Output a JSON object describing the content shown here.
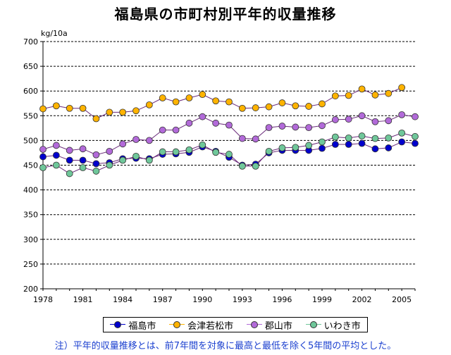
{
  "chart_data": {
    "type": "line",
    "title": "福島県の市町村別平年的収量推移",
    "ylabel": "kg/10a",
    "ylim": [
      200,
      700
    ],
    "yticks": [
      200,
      250,
      300,
      350,
      400,
      450,
      500,
      550,
      600,
      650,
      700
    ],
    "xlim": [
      1978,
      2006
    ],
    "xticks": [
      1978,
      1981,
      1984,
      1987,
      1990,
      1993,
      1996,
      1999,
      2002,
      2005
    ],
    "x": [
      1978,
      1979,
      1980,
      1981,
      1982,
      1983,
      1984,
      1985,
      1986,
      1987,
      1988,
      1989,
      1990,
      1991,
      1992,
      1993,
      1994,
      1995,
      1996,
      1997,
      1998,
      1999,
      2000,
      2001,
      2002,
      2003,
      2004,
      2005,
      2006
    ],
    "series": [
      {
        "name": "福島市",
        "color": "#0000cc",
        "values": [
          467,
          470,
          460,
          460,
          453,
          455,
          463,
          464,
          463,
          472,
          473,
          476,
          487,
          478,
          466,
          450,
          452,
          475,
          480,
          480,
          480,
          484,
          492,
          492,
          494,
          483,
          485,
          497,
          494
        ]
      },
      {
        "name": "会津若松市",
        "color": "#ffb300",
        "values": [
          564,
          570,
          565,
          565,
          544,
          557,
          557,
          560,
          572,
          586,
          578,
          586,
          593,
          580,
          578,
          565,
          566,
          568,
          576,
          570,
          569,
          574,
          590,
          591,
          604,
          592,
          595,
          607,
          null
        ]
      },
      {
        "name": "郡山市",
        "color": "#b26ad9",
        "values": [
          482,
          490,
          480,
          483,
          471,
          478,
          493,
          502,
          500,
          521,
          521,
          535,
          548,
          535,
          531,
          504,
          503,
          526,
          529,
          527,
          526,
          530,
          542,
          543,
          550,
          538,
          540,
          552,
          548
        ]
      },
      {
        "name": "いわき市",
        "color": "#6fc79a",
        "values": [
          445,
          450,
          433,
          445,
          438,
          450,
          460,
          468,
          460,
          477,
          477,
          481,
          491,
          476,
          472,
          448,
          448,
          478,
          485,
          486,
          490,
          497,
          507,
          505,
          509,
          504,
          505,
          515,
          508
        ]
      }
    ],
    "grid": true,
    "legend": "bottom"
  },
  "footnote": "注）平年的収量推移とは、前7年間を対象に最高と最低を除く5年間の平均とした。"
}
